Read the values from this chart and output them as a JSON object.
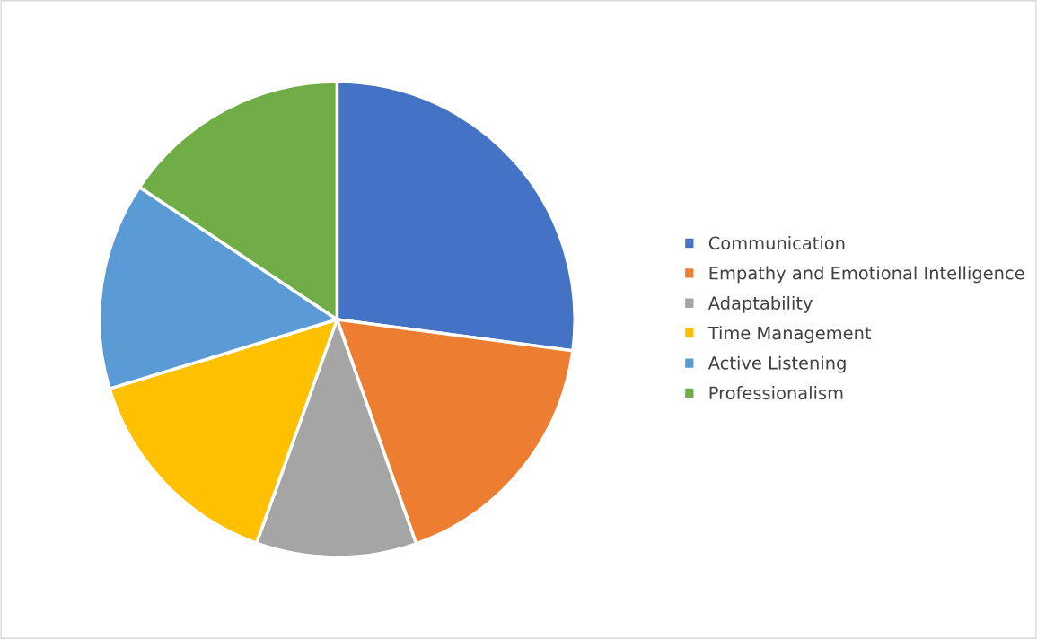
{
  "chart_data": {
    "type": "pie",
    "categories": [
      "Communication",
      "Empathy and Emotional Intelligence",
      "Adaptability",
      "Time Management",
      "Active Listening",
      "Professionalism"
    ],
    "values": [
      27.1,
      17.5,
      10.9,
      14.8,
      14.1,
      15.6
    ],
    "colors": [
      "#4472c4",
      "#ed7d31",
      "#a5a5a5",
      "#ffc000",
      "#5b9bd5",
      "#70ad47"
    ],
    "legend": "right"
  }
}
